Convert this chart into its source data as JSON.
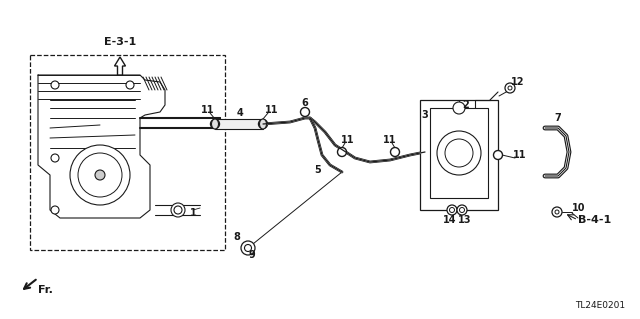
{
  "bg_color": "#ffffff",
  "lc": "#1a1a1a",
  "title_code": "TL24E0201",
  "ref_e31": "E-3-1",
  "ref_b41": "B-4-1",
  "ref_fr": "Fr."
}
